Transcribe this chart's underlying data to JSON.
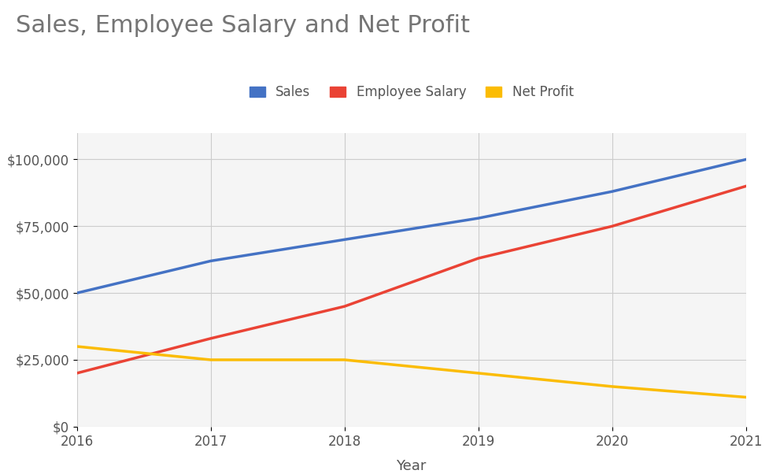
{
  "title": "Sales, Employee Salary and Net Profit",
  "xlabel": "Year",
  "years": [
    2016,
    2017,
    2018,
    2019,
    2020,
    2021
  ],
  "sales": [
    50000,
    62000,
    70000,
    78000,
    88000,
    100000
  ],
  "employee_salary": [
    20000,
    33000,
    45000,
    63000,
    75000,
    90000
  ],
  "net_profit": [
    30000,
    25000,
    25000,
    20000,
    15000,
    11000
  ],
  "sales_color": "#4472C4",
  "salary_color": "#EA4335",
  "profit_color": "#FBBC04",
  "background_color": "#ffffff",
  "plot_bg_color": "#f5f5f5",
  "title_color": "#757575",
  "line_width": 2.5,
  "ylim": [
    0,
    110000
  ],
  "yticks": [
    0,
    25000,
    50000,
    75000,
    100000
  ],
  "ytick_labels": [
    "$0",
    "$25,000",
    "$50,000",
    "$75,000",
    "$100,000"
  ],
  "xticks": [
    2016,
    2017,
    2018,
    2019,
    2020,
    2021
  ],
  "legend_labels": [
    "Sales",
    "Employee Salary",
    "Net Profit"
  ],
  "title_fontsize": 22,
  "axis_fontsize": 13,
  "tick_fontsize": 12,
  "legend_fontsize": 12
}
